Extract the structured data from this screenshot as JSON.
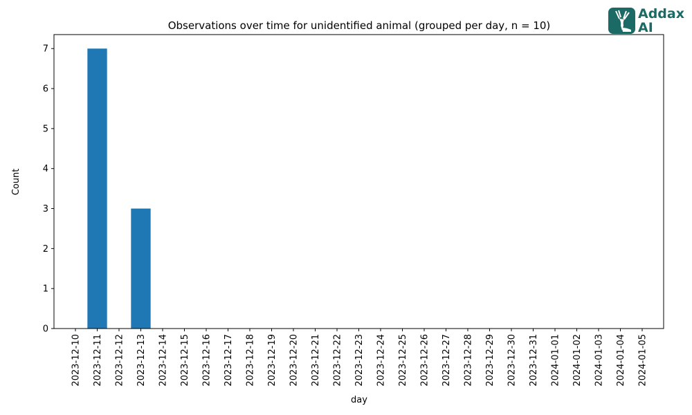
{
  "logo": {
    "line1": "Addax",
    "line2": "AI",
    "icon": "antelope-logo-icon",
    "color": "#1b6a66"
  },
  "chart_data": {
    "type": "bar",
    "title": "Observations over time for unidentified animal (grouped per day, n = 10)",
    "xlabel": "day",
    "ylabel": "Count",
    "ylim": [
      0,
      7.35
    ],
    "yticks": [
      0,
      1,
      2,
      3,
      4,
      5,
      6,
      7
    ],
    "grid": false,
    "bar_color": "#1f77b4",
    "categories": [
      "2023-12-10",
      "2023-12-11",
      "2023-12-12",
      "2023-12-13",
      "2023-12-14",
      "2023-12-15",
      "2023-12-16",
      "2023-12-17",
      "2023-12-18",
      "2023-12-19",
      "2023-12-20",
      "2023-12-21",
      "2023-12-22",
      "2023-12-23",
      "2023-12-24",
      "2023-12-25",
      "2023-12-26",
      "2023-12-27",
      "2023-12-28",
      "2023-12-29",
      "2023-12-30",
      "2023-12-31",
      "2024-01-01",
      "2024-01-02",
      "2024-01-03",
      "2024-01-04",
      "2024-01-05"
    ],
    "values": [
      0,
      7,
      0,
      3,
      0,
      0,
      0,
      0,
      0,
      0,
      0,
      0,
      0,
      0,
      0,
      0,
      0,
      0,
      0,
      0,
      0,
      0,
      0,
      0,
      0,
      0,
      0
    ]
  }
}
